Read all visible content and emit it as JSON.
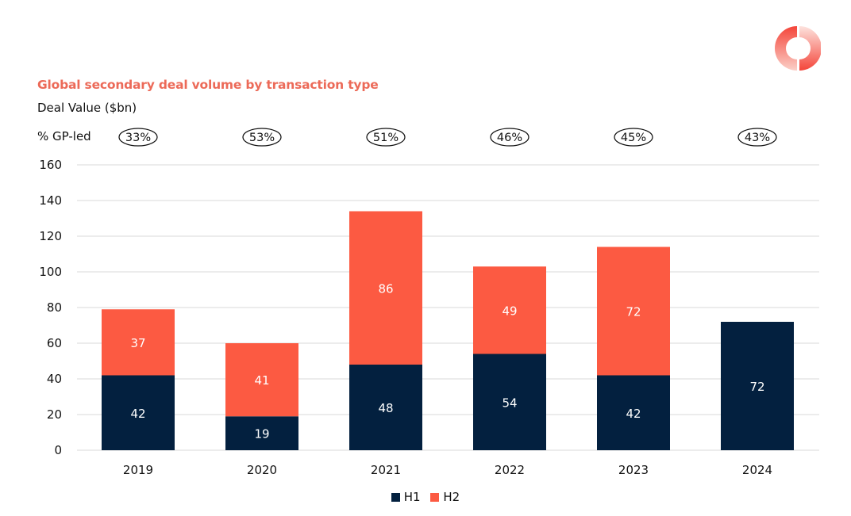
{
  "chart_data": {
    "type": "bar",
    "stacked": true,
    "title": "Global secondary deal volume by transaction type",
    "ylabel": "Deal Value ($bn)",
    "xlabel": "",
    "categories": [
      "2019",
      "2020",
      "2021",
      "2022",
      "2023",
      "2024"
    ],
    "series": [
      {
        "name": "H1",
        "color": "#03203f",
        "values": [
          42,
          19,
          48,
          54,
          42,
          72
        ]
      },
      {
        "name": "H2",
        "color": "#fc5a42",
        "values": [
          37,
          41,
          86,
          49,
          72,
          null
        ]
      }
    ],
    "ylim": [
      0,
      160
    ],
    "yticks": [
      0,
      20,
      40,
      60,
      80,
      100,
      120,
      140,
      160
    ],
    "grid": true,
    "legend_position": "bottom-center",
    "annotation_row": {
      "label": "% GP-led",
      "values": [
        "33%",
        "53%",
        "51%",
        "46%",
        "45%",
        "43%"
      ]
    }
  },
  "colors": {
    "title": "#ec6a58",
    "h1": "#03203f",
    "h2": "#fc5a42",
    "grid": "#d9d9d9",
    "text": "#111111",
    "data_label": "#ffffff"
  },
  "logo": {
    "icon": "donut-logo-icon"
  }
}
